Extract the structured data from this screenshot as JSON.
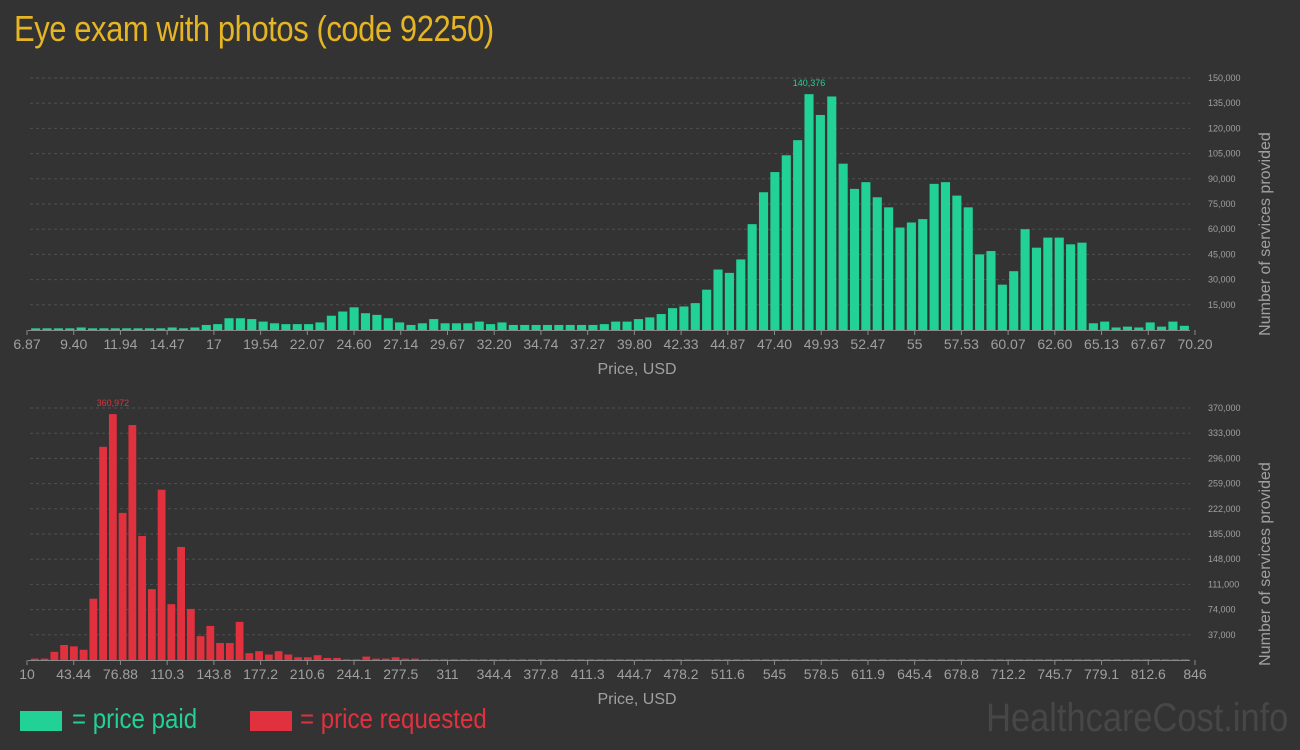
{
  "title": "Eye exam with photos (code 92250)",
  "legend": {
    "paid_label": "= price paid",
    "requested_label": "= price requested"
  },
  "watermark": "HealthcareCost.info",
  "colors": {
    "background": "#333333",
    "title": "#e6b523",
    "paid": "#22d196",
    "requested": "#e1313f",
    "axis_text": "#a0a0a0",
    "grid": "#505050",
    "watermark": "#474747"
  },
  "chart_data": [
    {
      "type": "bar",
      "series": [
        {
          "name": "price paid",
          "values": [
            1000,
            1000,
            1000,
            1000,
            1500,
            1000,
            1000,
            1000,
            1000,
            1000,
            1000,
            1000,
            1500,
            1000,
            1500,
            3000,
            3500,
            7000,
            7000,
            6500,
            5000,
            4000,
            3500,
            3500,
            3500,
            4500,
            8500,
            11000,
            13500,
            10000,
            9000,
            7000,
            4500,
            3000,
            4000,
            6500,
            4000,
            4000,
            4000,
            5000,
            3500,
            4500,
            3000,
            3000,
            3000,
            3000,
            3000,
            3000,
            3000,
            3000,
            3500,
            5000,
            5000,
            6500,
            7500,
            9500,
            13000,
            14000,
            16000,
            24000,
            36000,
            34000,
            42000,
            63000,
            82000,
            94000,
            104000,
            113000,
            140376,
            128000,
            139000,
            99000,
            84000,
            88000,
            79000,
            73000,
            61000,
            64000,
            66000,
            87000,
            88000,
            80000,
            73000,
            45000,
            47000,
            27000,
            35000,
            60000,
            49000,
            55000,
            55000,
            51000,
            52000,
            4000,
            5000,
            1500,
            2000,
            1500,
            4500,
            2000,
            5000,
            2500
          ]
        }
      ],
      "x_ticks": [
        "6.87",
        "9.40",
        "11.94",
        "14.47",
        "17",
        "19.54",
        "22.07",
        "24.60",
        "27.14",
        "29.67",
        "32.20",
        "34.74",
        "37.27",
        "39.80",
        "42.33",
        "44.87",
        "47.40",
        "49.93",
        "52.47",
        "55",
        "57.53",
        "60.07",
        "62.60",
        "65.13",
        "67.67",
        "70.20"
      ],
      "y_ticks": [
        "15,000",
        "30,000",
        "45,000",
        "60,000",
        "75,000",
        "90,000",
        "105,000",
        "120,000",
        "135,000",
        "150,000"
      ],
      "ylim": [
        0,
        150000
      ],
      "xlabel": "Price, USD",
      "ylabel": "Number of services provided",
      "peak_label": "140,376",
      "grid": true
    },
    {
      "type": "bar",
      "series": [
        {
          "name": "price requested",
          "values": [
            2000,
            2000,
            12000,
            22000,
            20000,
            15000,
            90000,
            313000,
            360972,
            216000,
            345000,
            182000,
            104000,
            250000,
            82000,
            166000,
            75000,
            35000,
            50000,
            25000,
            25000,
            56000,
            10000,
            13000,
            8000,
            13000,
            8000,
            4000,
            4000,
            7000,
            3000,
            3000,
            1000,
            1000,
            5000,
            2000,
            2000,
            4000,
            2000,
            2000,
            1000,
            1000,
            1000,
            1000,
            1000,
            1000,
            1000,
            1000,
            1000,
            1000,
            1000,
            1000,
            1000,
            1000,
            1000,
            1000,
            1000,
            1000,
            1000,
            1000,
            1000,
            1000,
            1000,
            1000,
            1000,
            1000,
            1000,
            1000,
            1000,
            1000,
            1000,
            1000,
            1000,
            1000,
            1000,
            1000,
            1000,
            1000,
            1000,
            1000,
            1000,
            1000,
            1000,
            1000,
            1000,
            1000,
            1000,
            1000,
            1000,
            1000,
            1000,
            1000,
            1000,
            1000,
            1000,
            1000,
            1000,
            1000,
            1000,
            1000,
            1000,
            1000,
            1000,
            1000,
            1000,
            1000,
            1000,
            1000,
            1000,
            1000,
            1000,
            1000,
            1000,
            1000,
            1000,
            1000,
            1000,
            1000,
            1000
          ]
        }
      ],
      "x_ticks": [
        "10",
        "43.44",
        "76.88",
        "110.3",
        "143.8",
        "177.2",
        "210.6",
        "244.1",
        "277.5",
        "311",
        "344.4",
        "377.8",
        "411.3",
        "444.7",
        "478.2",
        "511.6",
        "545",
        "578.5",
        "611.9",
        "645.4",
        "678.8",
        "712.2",
        "745.7",
        "779.1",
        "812.6",
        "846"
      ],
      "y_ticks": [
        "37,000",
        "74,000",
        "111,000",
        "148,000",
        "185,000",
        "222,000",
        "259,000",
        "296,000",
        "333,000",
        "370,000"
      ],
      "ylim": [
        0,
        370000
      ],
      "xlabel": "Price, USD",
      "ylabel": "Number of services provided",
      "peak_label": "360,972",
      "grid": true
    }
  ]
}
